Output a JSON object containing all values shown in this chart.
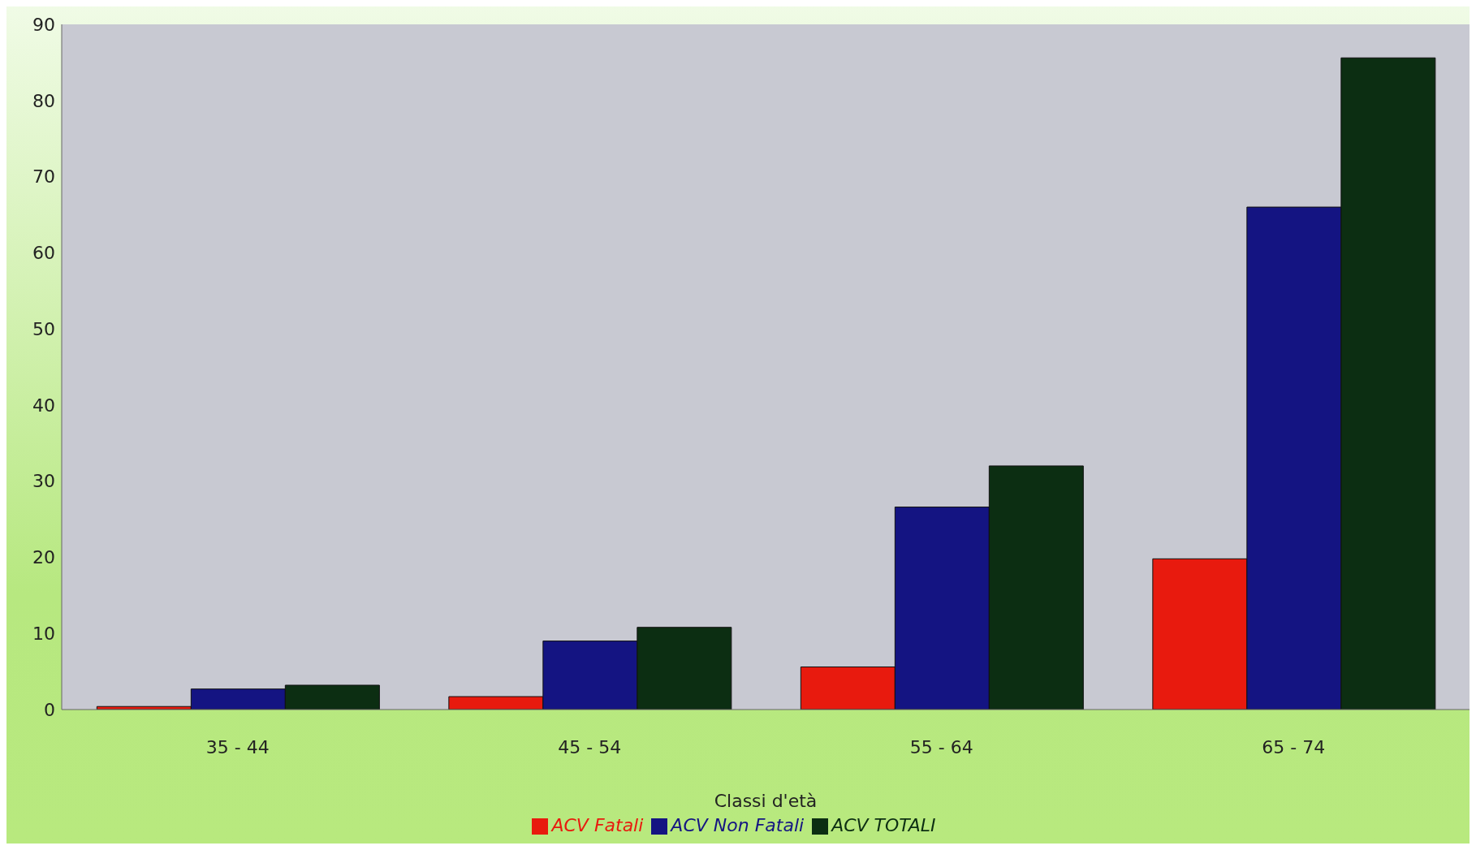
{
  "chart_data": {
    "type": "bar",
    "xlabel": "Classi d'età",
    "categories": [
      "35 - 44",
      "45 - 54",
      "55 - 64",
      "65 - 74"
    ],
    "series": [
      {
        "name": "ACV Fatali",
        "color": "#e81a0e",
        "values": [
          0.4,
          1.7,
          5.6,
          19.8
        ]
      },
      {
        "name": "ACV Non Fatali",
        "color": "#141482",
        "values": [
          2.7,
          9.0,
          26.6,
          66.0
        ]
      },
      {
        "name": "ACV TOTALI",
        "color": "#0c2e12",
        "values": [
          3.2,
          10.8,
          32.0,
          85.6
        ]
      }
    ],
    "ylim": [
      0,
      90
    ],
    "yticks": [
      0,
      10,
      20,
      30,
      40,
      50,
      60,
      70,
      80,
      90
    ],
    "legend": "bottom"
  }
}
